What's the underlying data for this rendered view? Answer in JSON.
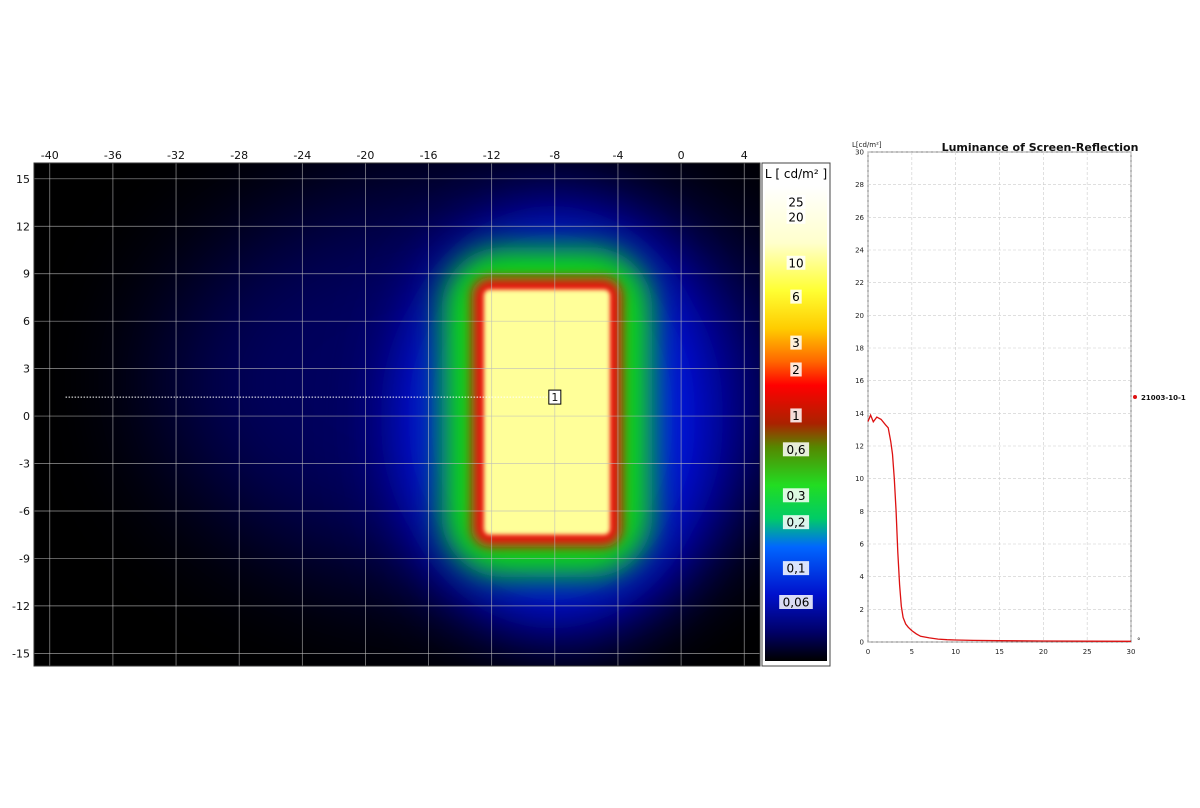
{
  "chart_data": [
    {
      "type": "heatmap",
      "x_ticks": [
        "-40",
        "-36",
        "-32",
        "-28",
        "-24",
        "-20",
        "-16",
        "-12",
        "-8",
        "-4",
        "0",
        "4"
      ],
      "y_ticks": [
        "15",
        "12",
        "9",
        "6",
        "3",
        "0",
        "-3",
        "-6",
        "-9",
        "-12",
        "-15"
      ],
      "xlim": [
        -41,
        5
      ],
      "ylim": [
        -15.8,
        16
      ],
      "colorbar": {
        "title": "L [ cd/m² ]",
        "labels": [
          "25",
          "20",
          "10",
          "6",
          "3",
          "2",
          "1",
          "0,6",
          "0,3",
          "0,2",
          "0,1",
          "0,06"
        ]
      },
      "bright_region": {
        "x_range": [
          -12.5,
          -4.5
        ],
        "y_range": [
          -7.5,
          8
        ]
      },
      "profile_line": {
        "x_start": -39,
        "x_end": -8,
        "y": 1.2
      },
      "marker_label": "1",
      "marker_position": {
        "x": -8,
        "y": 1.2
      },
      "colors": {
        "background": "#000000",
        "deep_blue": "#0000aa",
        "blue": "#0022ff",
        "green": "#11dd11",
        "red": "#ee1111",
        "core": "#ffff99"
      }
    },
    {
      "type": "line",
      "title": "Luminance of Screen-Reflection",
      "ylabel": "L[cd/m²]",
      "xlabel": "°",
      "xlim": [
        0,
        30
      ],
      "ylim": [
        0,
        30
      ],
      "x_ticks": [
        "0",
        "5",
        "10",
        "15",
        "20",
        "25",
        "30"
      ],
      "y_ticks": [
        "0",
        "2",
        "4",
        "6",
        "8",
        "10",
        "12",
        "14",
        "16",
        "18",
        "20",
        "22",
        "24",
        "26",
        "28",
        "30"
      ],
      "series": [
        {
          "name": "21003-10-1",
          "color": "#dd1111",
          "x": [
            0,
            0.3,
            0.6,
            1,
            1.5,
            2,
            2.3,
            2.6,
            2.8,
            3.0,
            3.2,
            3.4,
            3.6,
            3.8,
            4.0,
            4.3,
            4.6,
            5,
            5.5,
            6,
            7,
            8,
            9,
            10,
            12,
            15,
            20,
            25,
            30
          ],
          "y": [
            13.5,
            13.8,
            13.6,
            13.7,
            13.6,
            13.4,
            13.0,
            12.3,
            11.5,
            10.0,
            8.0,
            5.5,
            3.5,
            2.2,
            1.5,
            1.1,
            0.9,
            0.7,
            0.5,
            0.35,
            0.25,
            0.18,
            0.14,
            0.12,
            0.1,
            0.08,
            0.06,
            0.05,
            0.04
          ]
        }
      ]
    }
  ]
}
